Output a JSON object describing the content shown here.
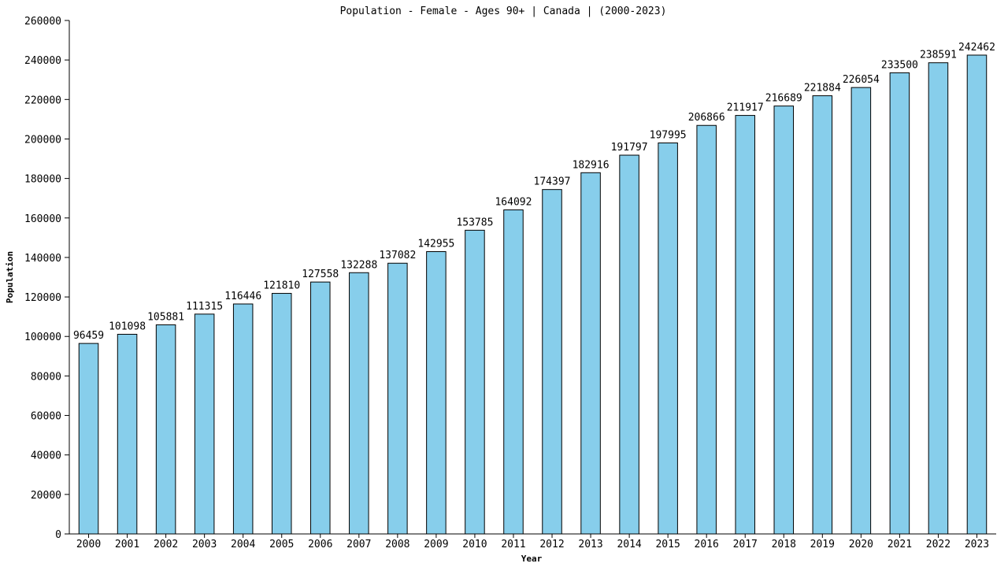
{
  "chart_data": {
    "type": "bar",
    "title": "Population - Female - Ages 90+ | Canada |  (2000-2023)",
    "xlabel": "Year",
    "ylabel": "Population",
    "ylim": [
      0,
      260000
    ],
    "yticks": [
      0,
      20000,
      40000,
      60000,
      80000,
      100000,
      120000,
      140000,
      160000,
      180000,
      200000,
      220000,
      240000,
      260000
    ],
    "categories": [
      "2000",
      "2001",
      "2002",
      "2003",
      "2004",
      "2005",
      "2006",
      "2007",
      "2008",
      "2009",
      "2010",
      "2011",
      "2012",
      "2013",
      "2014",
      "2015",
      "2016",
      "2017",
      "2018",
      "2019",
      "2020",
      "2021",
      "2022",
      "2023"
    ],
    "values": [
      96459,
      101098,
      105881,
      111315,
      116446,
      121810,
      127558,
      132288,
      137082,
      142955,
      153785,
      164092,
      174397,
      182916,
      191797,
      197995,
      206866,
      211917,
      216689,
      221884,
      226054,
      233500,
      238591,
      242462
    ],
    "bar_color": "#87ceeb",
    "grid": false
  }
}
